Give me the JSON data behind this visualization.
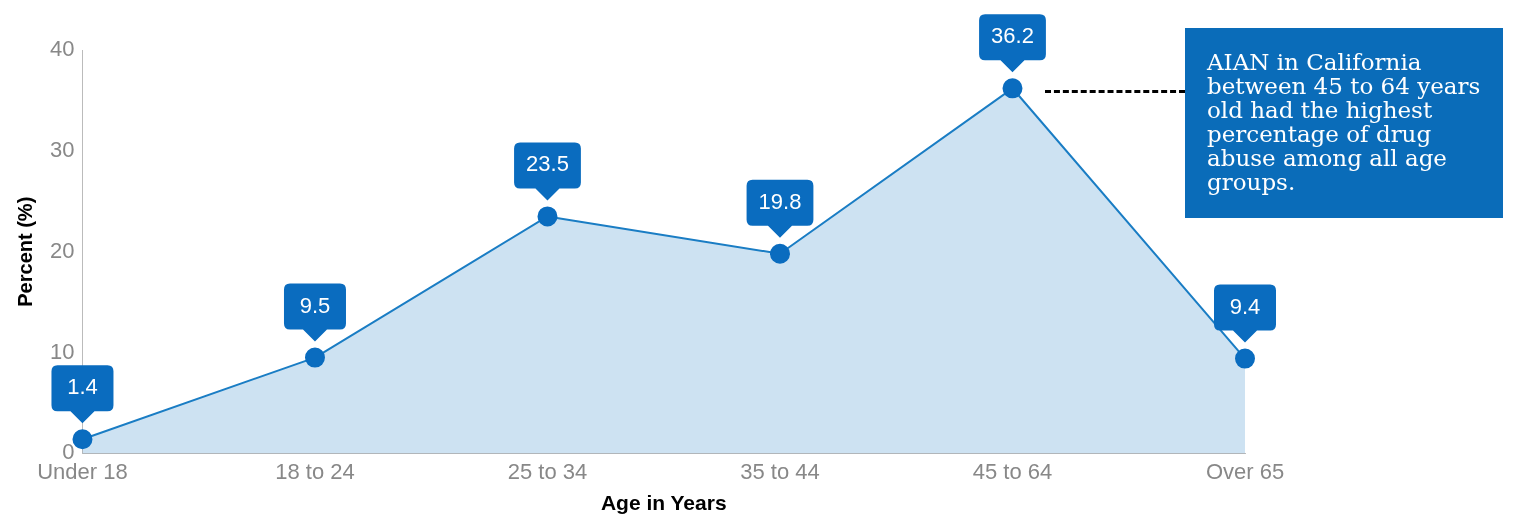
{
  "chart_data": {
    "type": "area",
    "categories": [
      "Under 18",
      "18 to 24",
      "25 to 34",
      "35 to 44",
      "45 to 64",
      "Over 65"
    ],
    "series": [
      {
        "color": "#1a7dc4",
        "values": [
          1.4,
          9.5,
          23.5,
          19.8,
          36.2,
          9.4
        ]
      }
    ],
    "xlabel": "Age in Years",
    "ylabel": "Percent (%)",
    "ylim": [
      0,
      40
    ],
    "yticks": [
      0,
      10,
      20,
      30,
      40
    ],
    "grid": false,
    "legend": false,
    "marker": "circle",
    "data_labels": true,
    "annotations": [
      "AIAN in California between 45 to 64 years old had the highest percentage of drug abuse among all age groups."
    ]
  }
}
